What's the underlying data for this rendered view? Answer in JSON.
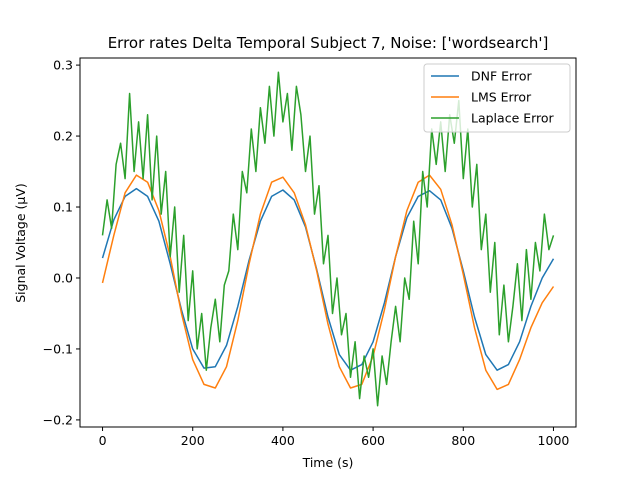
{
  "chart_data": {
    "type": "line",
    "title": "Error rates Delta Temporal Subject 7, Noise: ['wordsearch']",
    "xlabel": "Time (s)",
    "ylabel": "Signal Voltage (μV)",
    "xlim": [
      -50,
      1050
    ],
    "ylim": [
      -0.21,
      0.31
    ],
    "xticks": [
      0,
      200,
      400,
      600,
      800,
      1000
    ],
    "xtick_labels": [
      "0",
      "200",
      "400",
      "600",
      "800",
      "1000"
    ],
    "yticks": [
      -0.2,
      -0.1,
      0.0,
      0.1,
      0.2,
      0.3
    ],
    "ytick_labels": [
      "−0.2",
      "−0.1",
      "0.0",
      "0.1",
      "0.2",
      "0.3"
    ],
    "grid": false,
    "legend_position": "top-right",
    "series": [
      {
        "name": "DNF Error",
        "color": "#1f77b4",
        "x": [
          0,
          25,
          50,
          75,
          100,
          125,
          150,
          175,
          200,
          225,
          250,
          275,
          300,
          325,
          350,
          375,
          400,
          425,
          450,
          475,
          500,
          525,
          550,
          575,
          600,
          625,
          650,
          675,
          700,
          725,
          750,
          775,
          800,
          825,
          850,
          875,
          900,
          925,
          950,
          975,
          1000
        ],
        "y": [
          0.028,
          0.082,
          0.115,
          0.126,
          0.115,
          0.08,
          0.02,
          -0.045,
          -0.1,
          -0.127,
          -0.125,
          -0.095,
          -0.04,
          0.025,
          0.08,
          0.115,
          0.124,
          0.11,
          0.072,
          0.012,
          -0.055,
          -0.108,
          -0.13,
          -0.122,
          -0.09,
          -0.035,
          0.03,
          0.085,
          0.115,
          0.123,
          0.11,
          0.07,
          0.01,
          -0.055,
          -0.108,
          -0.13,
          -0.122,
          -0.09,
          -0.04,
          0.0,
          0.027
        ]
      },
      {
        "name": "LMS Error",
        "color": "#ff7f0e",
        "x": [
          0,
          25,
          50,
          75,
          100,
          125,
          150,
          175,
          200,
          225,
          250,
          275,
          300,
          325,
          350,
          375,
          400,
          425,
          450,
          475,
          500,
          525,
          550,
          575,
          600,
          625,
          650,
          675,
          700,
          725,
          750,
          775,
          800,
          825,
          850,
          875,
          900,
          925,
          950,
          975,
          1000
        ],
        "y": [
          -0.007,
          0.06,
          0.12,
          0.145,
          0.135,
          0.095,
          0.03,
          -0.05,
          -0.115,
          -0.15,
          -0.155,
          -0.125,
          -0.06,
          0.02,
          0.09,
          0.135,
          0.142,
          0.12,
          0.075,
          0.01,
          -0.065,
          -0.125,
          -0.155,
          -0.15,
          -0.11,
          -0.045,
          0.03,
          0.095,
          0.135,
          0.145,
          0.125,
          0.075,
          0.005,
          -0.07,
          -0.13,
          -0.157,
          -0.15,
          -0.115,
          -0.07,
          -0.035,
          -0.012
        ]
      },
      {
        "name": "Laplace Error",
        "color": "#2ca02c",
        "x": [
          0,
          10,
          20,
          30,
          40,
          50,
          60,
          70,
          80,
          90,
          100,
          110,
          120,
          130,
          140,
          150,
          160,
          170,
          180,
          190,
          200,
          210,
          220,
          230,
          240,
          250,
          260,
          270,
          280,
          290,
          300,
          310,
          320,
          330,
          340,
          350,
          360,
          370,
          380,
          390,
          400,
          410,
          420,
          430,
          440,
          450,
          460,
          470,
          480,
          490,
          500,
          510,
          520,
          530,
          540,
          550,
          560,
          570,
          580,
          590,
          600,
          610,
          620,
          630,
          640,
          650,
          660,
          670,
          680,
          690,
          700,
          710,
          720,
          730,
          740,
          750,
          760,
          770,
          780,
          790,
          800,
          810,
          820,
          830,
          840,
          850,
          860,
          870,
          880,
          890,
          900,
          910,
          920,
          930,
          940,
          950,
          960,
          970,
          980,
          990,
          1000
        ],
        "y": [
          0.06,
          0.11,
          0.07,
          0.16,
          0.19,
          0.14,
          0.26,
          0.15,
          0.22,
          0.14,
          0.23,
          0.11,
          0.2,
          0.09,
          0.15,
          0.03,
          0.1,
          -0.02,
          0.06,
          -0.06,
          0.01,
          -0.1,
          -0.05,
          -0.13,
          -0.07,
          -0.03,
          -0.09,
          -0.01,
          0.01,
          0.09,
          0.04,
          0.15,
          0.12,
          0.21,
          0.15,
          0.24,
          0.19,
          0.27,
          0.2,
          0.29,
          0.22,
          0.26,
          0.18,
          0.27,
          0.23,
          0.15,
          0.2,
          0.09,
          0.13,
          0.02,
          0.06,
          -0.05,
          0.0,
          -0.08,
          -0.05,
          -0.14,
          -0.09,
          -0.17,
          -0.11,
          -0.14,
          -0.1,
          -0.18,
          -0.11,
          -0.15,
          -0.09,
          -0.04,
          -0.09,
          0.0,
          -0.03,
          0.08,
          0.02,
          0.15,
          0.1,
          0.21,
          0.16,
          0.22,
          0.15,
          0.23,
          0.19,
          0.25,
          0.14,
          0.21,
          0.1,
          0.16,
          0.04,
          0.09,
          -0.02,
          0.05,
          -0.08,
          -0.01,
          -0.09,
          -0.04,
          0.02,
          -0.06,
          0.04,
          -0.03,
          0.05,
          0.01,
          0.09,
          0.04,
          0.06
        ]
      }
    ]
  }
}
